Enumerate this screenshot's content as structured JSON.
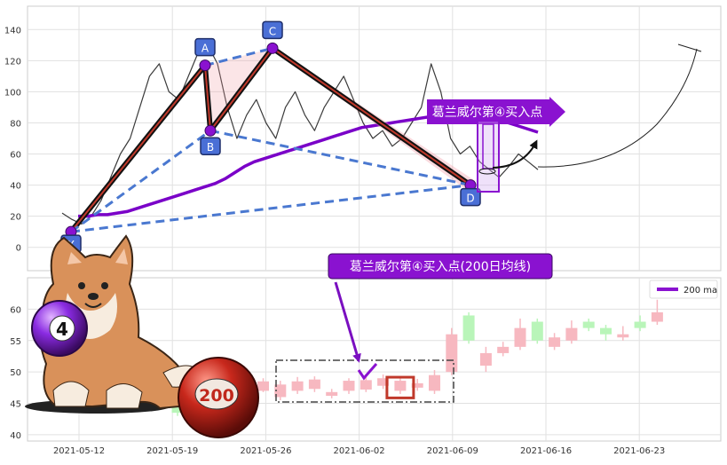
{
  "chart_data": [
    {
      "type": "line",
      "panel": "upper",
      "ylim": [
        -15,
        155
      ],
      "yticks": [
        0,
        20,
        40,
        60,
        80,
        100,
        120,
        140
      ],
      "grid": true,
      "series": [
        {
          "role": "price",
          "values": [
            22,
            18,
            15,
            20,
            30,
            45,
            60,
            70,
            90,
            110,
            118,
            100,
            95,
            110,
            125,
            130,
            118,
            90,
            70,
            85,
            95,
            80,
            70,
            90,
            100,
            85,
            75,
            90,
            100,
            110,
            95,
            80,
            70,
            75,
            65,
            70,
            80,
            90,
            118,
            100,
            70,
            60,
            65,
            55,
            50,
            45,
            52,
            60,
            55,
            50
          ],
          "color": "#3a3a3a"
        },
        {
          "role": "ma",
          "name": "200 ma",
          "values": [
            20,
            20,
            21,
            21,
            22,
            23,
            25,
            27,
            29,
            31,
            33,
            35,
            37,
            39,
            41,
            44,
            48,
            52,
            55,
            57,
            59,
            61,
            63,
            65,
            67,
            69,
            71,
            73,
            75,
            77,
            78,
            79,
            80,
            81,
            82,
            83,
            84,
            85,
            86,
            87,
            86,
            85,
            84,
            82,
            80,
            78,
            76,
            74
          ],
          "color": "#7a00c8"
        }
      ],
      "pattern_points": [
        {
          "label": "X",
          "y": 10
        },
        {
          "label": "A",
          "y": 117
        },
        {
          "label": "B",
          "y": 75
        },
        {
          "label": "C",
          "y": 128
        },
        {
          "label": "D",
          "y": 40
        }
      ],
      "annotation": "葛兰威尔第④买入点",
      "accent_color": "#8a12d0"
    },
    {
      "type": "candlestick",
      "panel": "lower",
      "ylim": [
        39,
        65
      ],
      "yticks": [
        40,
        45,
        50,
        55,
        60
      ],
      "grid": true,
      "x_tick_labels": [
        "2021-05-12",
        "2021-05-19",
        "2021-05-26",
        "2021-06-02",
        "2021-06-09",
        "2021-06-16",
        "2021-06-23"
      ],
      "legend": {
        "label": "200 ma",
        "position": "top-right",
        "color": "#8a12d0"
      },
      "candles": [
        {
          "o": 44.5,
          "c": 43.5,
          "h": 45.5,
          "l": 43.0
        },
        {
          "o": 45.5,
          "c": 46.2,
          "h": 46.8,
          "l": 45.0
        },
        {
          "o": 45.8,
          "c": 47.5,
          "h": 48.0,
          "l": 45.5
        },
        {
          "o": 46.5,
          "c": 48.0,
          "h": 48.6,
          "l": 46.0
        },
        {
          "o": 46.8,
          "c": 48.5,
          "h": 49.0,
          "l": 46.5
        },
        {
          "o": 47.0,
          "c": 48.5,
          "h": 49.0,
          "l": 46.8
        },
        {
          "o": 46.0,
          "c": 48.0,
          "h": 48.6,
          "l": 45.5
        },
        {
          "o": 47.0,
          "c": 48.5,
          "h": 49.2,
          "l": 46.5
        },
        {
          "o": 47.3,
          "c": 48.8,
          "h": 49.3,
          "l": 46.8
        },
        {
          "o": 46.2,
          "c": 46.8,
          "h": 47.3,
          "l": 45.8
        },
        {
          "o": 47.0,
          "c": 48.6,
          "h": 49.0,
          "l": 46.5
        },
        {
          "o": 47.2,
          "c": 48.7,
          "h": 49.5,
          "l": 46.8
        },
        {
          "o": 47.8,
          "c": 49.0,
          "h": 49.6,
          "l": 47.3
        },
        {
          "o": 47.0,
          "c": 48.6,
          "h": 49.2,
          "l": 46.5
        },
        {
          "o": 47.5,
          "c": 48.2,
          "h": 48.9,
          "l": 47.0
        },
        {
          "o": 47.0,
          "c": 49.5,
          "h": 50.3,
          "l": 46.5
        },
        {
          "o": 50.0,
          "c": 56.0,
          "h": 57.0,
          "l": 49.5
        },
        {
          "o": 59.0,
          "c": 55.0,
          "h": 59.5,
          "l": 54.5
        },
        {
          "o": 51.0,
          "c": 53.0,
          "h": 54.0,
          "l": 50.0
        },
        {
          "o": 53.0,
          "c": 54.0,
          "h": 54.8,
          "l": 52.5
        },
        {
          "o": 54.0,
          "c": 57.0,
          "h": 58.5,
          "l": 53.5
        },
        {
          "o": 58.0,
          "c": 55.0,
          "h": 58.5,
          "l": 54.5
        },
        {
          "o": 54.0,
          "c": 55.5,
          "h": 56.2,
          "l": 53.5
        },
        {
          "o": 55.0,
          "c": 57.0,
          "h": 58.2,
          "l": 54.5
        },
        {
          "o": 58.0,
          "c": 57.0,
          "h": 58.5,
          "l": 56.5
        },
        {
          "o": 57.0,
          "c": 56.0,
          "h": 57.5,
          "l": 55.0
        },
        {
          "o": 55.5,
          "c": 56.0,
          "h": 57.3,
          "l": 55.0
        },
        {
          "o": 58.0,
          "c": 57.0,
          "h": 59.0,
          "l": 56.5
        },
        {
          "o": 58.0,
          "c": 59.5,
          "h": 61.5,
          "l": 57.5
        }
      ],
      "highlight_candle": 13,
      "annotation": "葛兰威尔第④买入点(200日均线)",
      "up_color": "#f7b8c0",
      "down_color": "#b9f5b9"
    }
  ],
  "badges": {
    "ball_left": "4",
    "ball_right": "200"
  }
}
